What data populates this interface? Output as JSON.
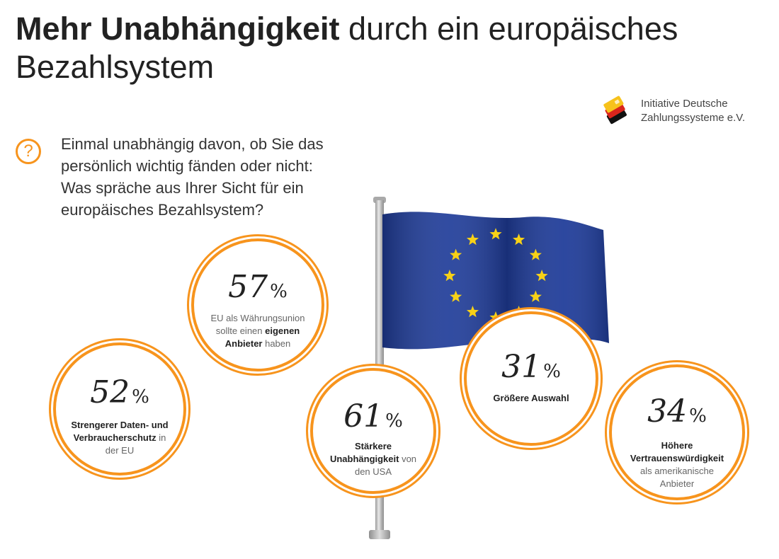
{
  "header": {
    "title_bold": "Mehr Unabhängigkeit",
    "title_rest": " durch ein europäisches Bezahlsystem"
  },
  "logo": {
    "line1": "Initiative Deutsche",
    "line2": "Zahlungssysteme e.V."
  },
  "question": {
    "icon": "question-mark-icon",
    "text": "Einmal unabhängig davon, ob Sie das persönlich wichtig fänden oder nicht: Was spräche aus Ihrer Sicht für ein europäisches Bezahlsystem?"
  },
  "colors": {
    "accent": "#f7941d",
    "flag_blue": "#1f3c99",
    "flag_star": "#f7d117"
  },
  "chart_data": {
    "type": "bubble",
    "unit": "%",
    "items": [
      {
        "value": 57,
        "pct_text": "57",
        "label_parts": [
          {
            "t": "EU als Währungsunion sollte einen ",
            "b": false
          },
          {
            "t": "eigenen Anbieter",
            "b": true
          },
          {
            "t": " haben",
            "b": false
          }
        ]
      },
      {
        "value": 52,
        "pct_text": "52",
        "label_parts": [
          {
            "t": "Strengerer Daten- und Verbraucherschutz",
            "b": true
          },
          {
            "t": " in der EU",
            "b": false
          }
        ]
      },
      {
        "value": 61,
        "pct_text": "61",
        "label_parts": [
          {
            "t": "Stärkere Unabhängigkeit",
            "b": true
          },
          {
            "t": " von den USA",
            "b": false
          }
        ]
      },
      {
        "value": 31,
        "pct_text": "31",
        "label_parts": [
          {
            "t": "Größere Auswahl",
            "b": true
          }
        ]
      },
      {
        "value": 34,
        "pct_text": "34",
        "label_parts": [
          {
            "t": "Höhere Vertrauenswürdigkeit",
            "b": true
          },
          {
            "t": " als amerikanische Anbieter",
            "b": false
          }
        ]
      }
    ]
  }
}
